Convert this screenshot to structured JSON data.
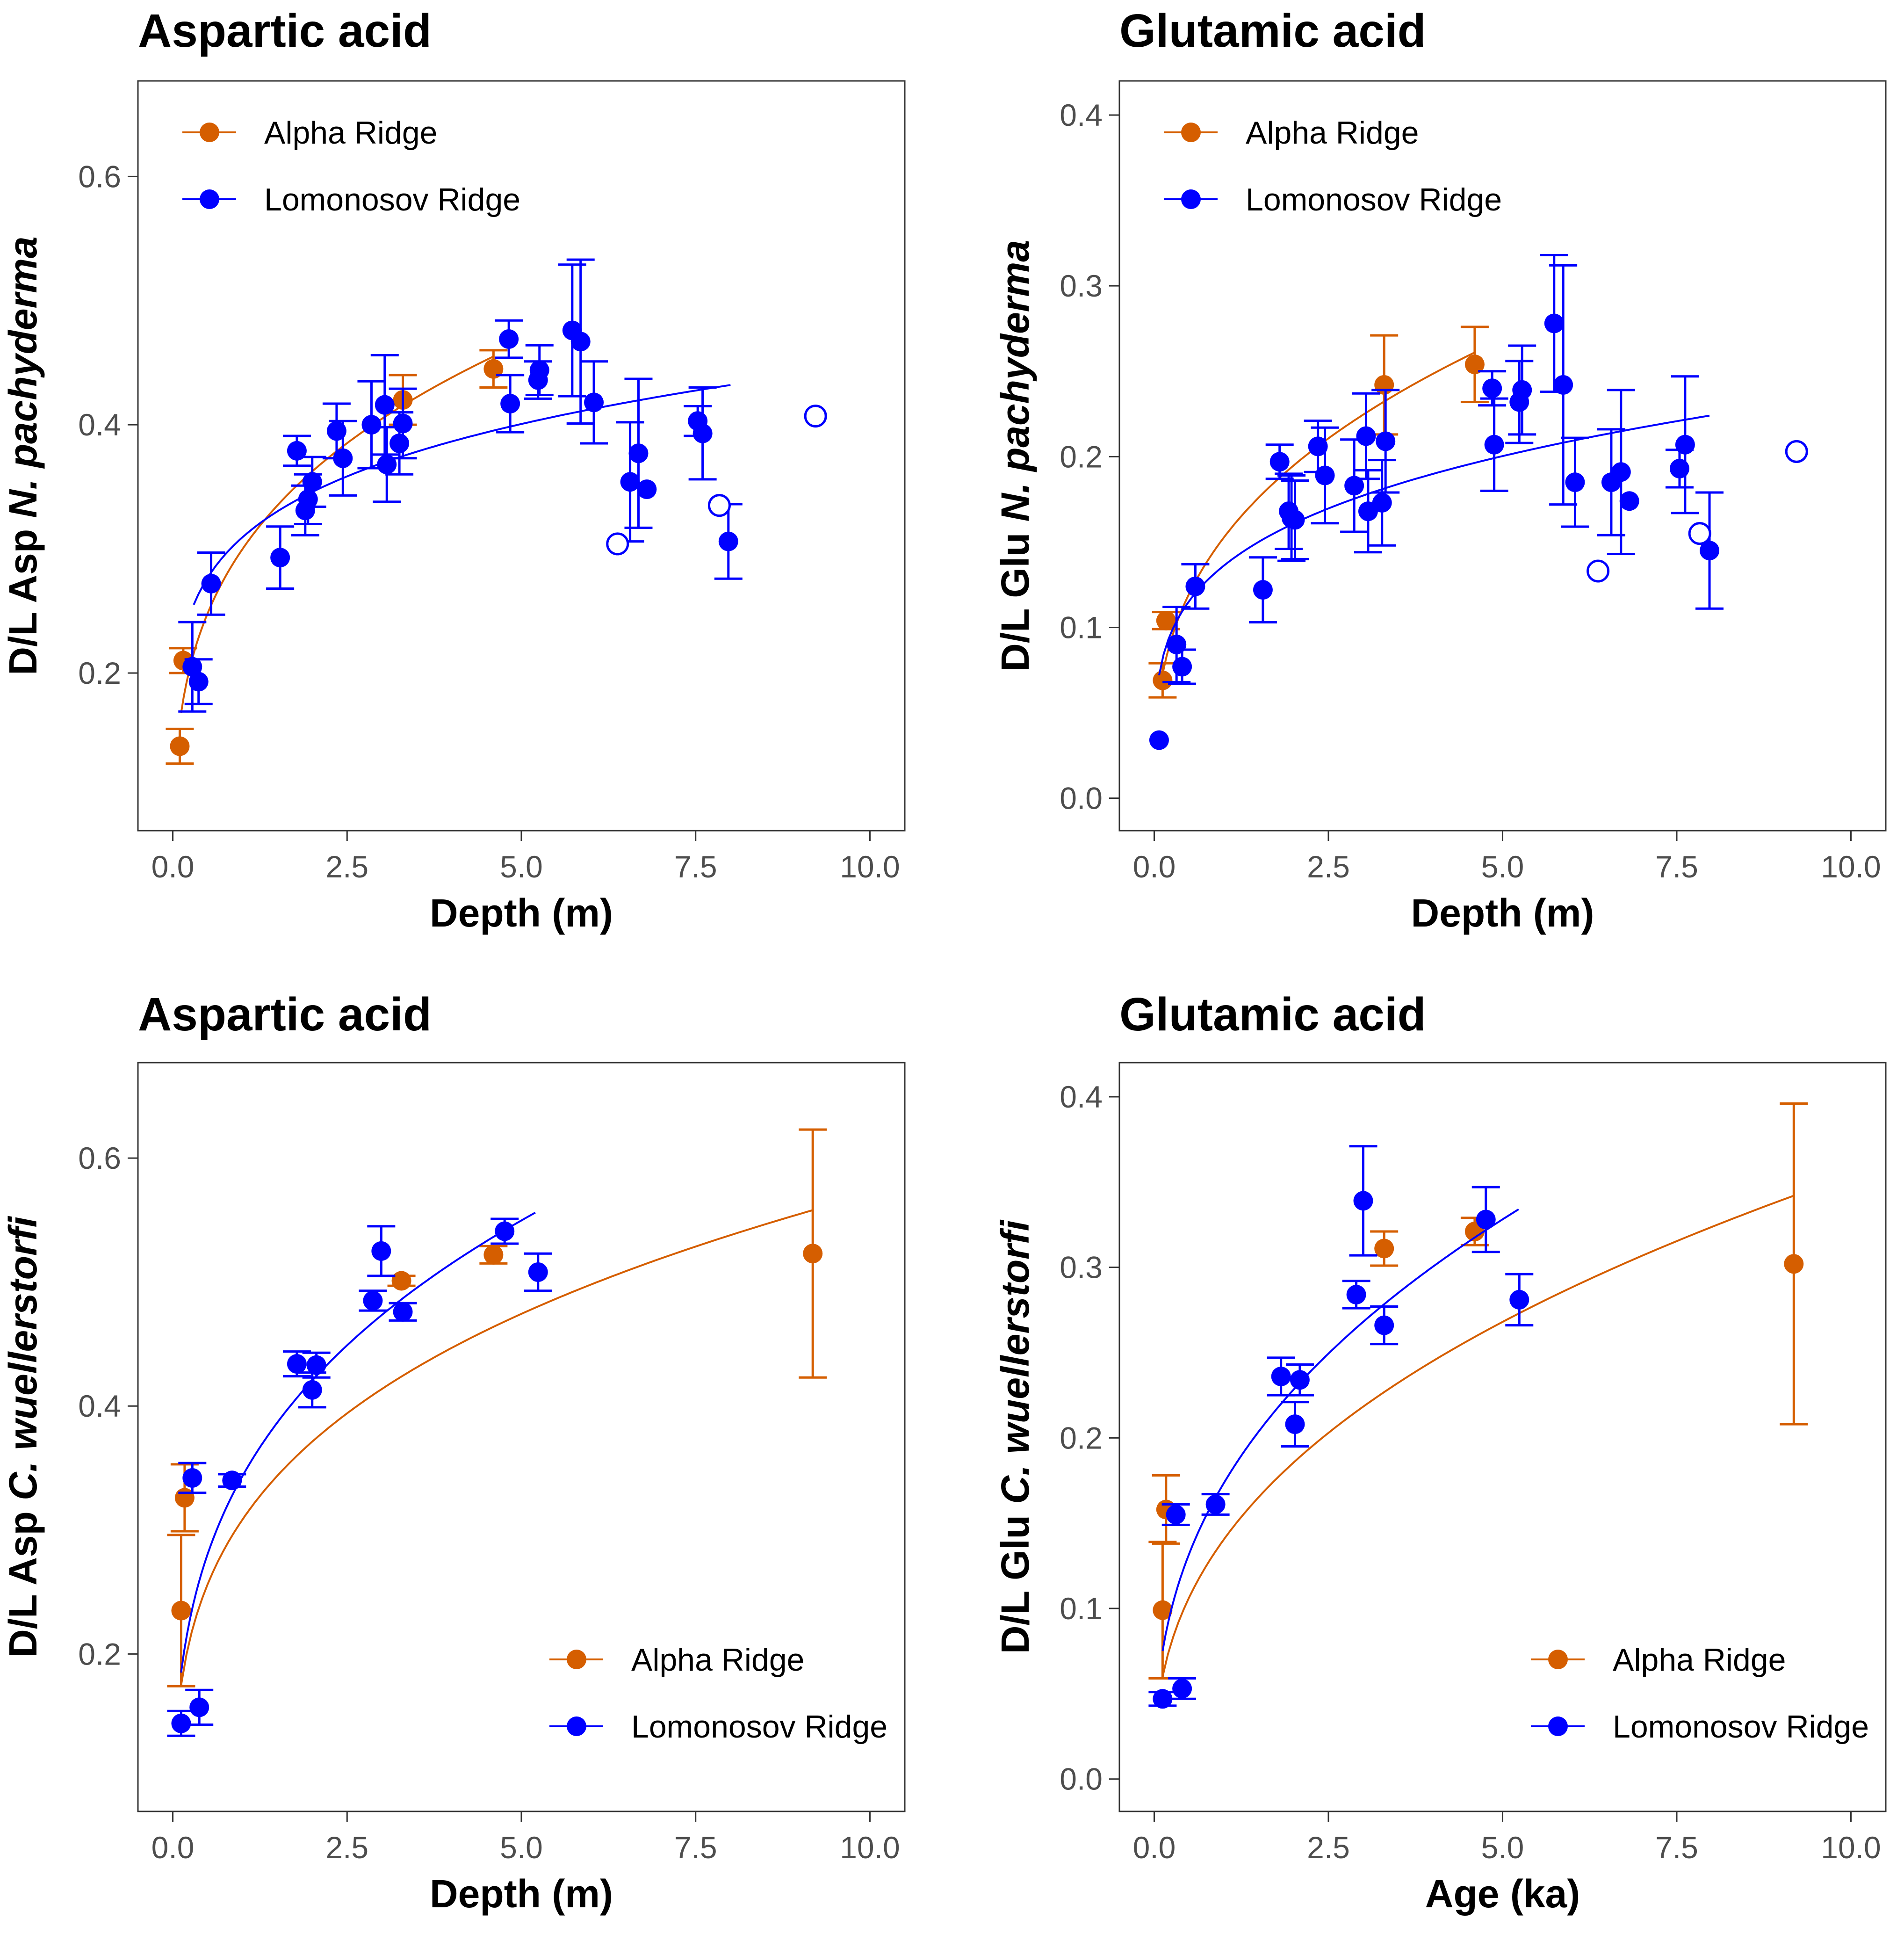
{
  "figure": {
    "colors": {
      "alpha": "#D55E00",
      "lomonosov": "#0000FF"
    }
  },
  "chart_data": [
    {
      "type": "scatter",
      "title": "Aspartic acid",
      "xlabel": "Depth (m)",
      "ylabel_prefix": "D/L Asp ",
      "ylabel_italic": "N. pachyderma",
      "xlim": [
        -0.5,
        10.5
      ],
      "ylim": [
        0.073,
        0.677
      ],
      "xticks": [
        0,
        2.5,
        5,
        7.5,
        10
      ],
      "xtick_labels": [
        "0.0",
        "2.5",
        "5.0",
        "7.5",
        "10.0"
      ],
      "yticks": [
        0.2,
        0.4,
        0.6
      ],
      "ytick_labels": [
        "0.2",
        "0.4",
        "0.6"
      ],
      "grid": false,
      "legend": {
        "position": "top-left",
        "entries": [
          "Alpha Ridge",
          "Lomonosov Ridge"
        ]
      },
      "series": [
        {
          "name": "Alpha Ridge",
          "color_key": "alpha",
          "points": [
            {
              "x": 0.1,
              "y": 0.141,
              "err": 0.014
            },
            {
              "x": 0.15,
              "y": 0.21,
              "err": 0.01
            },
            {
              "x": 3.3,
              "y": 0.42,
              "err": 0.02
            },
            {
              "x": 4.6,
              "y": 0.445,
              "err": 0.015
            }
          ],
          "fit": {
            "x0": 0.12,
            "x1": 4.6,
            "y0": 0.168,
            "y1": 0.455
          }
        },
        {
          "name": "Lomonosov Ridge",
          "color_key": "lomonosov",
          "points": [
            {
              "x": 0.28,
              "y": 0.205,
              "err": 0.036
            },
            {
              "x": 0.37,
              "y": 0.193,
              "err": 0.018
            },
            {
              "x": 0.55,
              "y": 0.272,
              "err": 0.025
            },
            {
              "x": 1.54,
              "y": 0.293,
              "err": 0.025
            },
            {
              "x": 1.78,
              "y": 0.379,
              "err": 0.012
            },
            {
              "x": 1.9,
              "y": 0.331,
              "err": 0.02
            },
            {
              "x": 1.94,
              "y": 0.34,
              "err": 0.02
            },
            {
              "x": 2.0,
              "y": 0.354,
              "err": 0.02
            },
            {
              "x": 2.35,
              "y": 0.395,
              "err": 0.022
            },
            {
              "x": 2.44,
              "y": 0.373,
              "err": 0.03
            },
            {
              "x": 2.85,
              "y": 0.4,
              "err": 0.035
            },
            {
              "x": 3.04,
              "y": 0.416,
              "err": 0.04
            },
            {
              "x": 3.07,
              "y": 0.368,
              "err": 0.03
            },
            {
              "x": 3.25,
              "y": 0.385,
              "err": 0.025
            },
            {
              "x": 3.3,
              "y": 0.401,
              "err": 0.028
            },
            {
              "x": 4.82,
              "y": 0.469,
              "err": 0.015
            },
            {
              "x": 4.84,
              "y": 0.417,
              "err": 0.023
            },
            {
              "x": 5.24,
              "y": 0.436,
              "err": 0.015
            },
            {
              "x": 5.26,
              "y": 0.444,
              "err": 0.02
            },
            {
              "x": 5.73,
              "y": 0.476,
              "err": 0.053
            },
            {
              "x": 5.85,
              "y": 0.467,
              "err": 0.066
            },
            {
              "x": 6.04,
              "y": 0.418,
              "err": 0.033
            },
            {
              "x": 6.56,
              "y": 0.354,
              "err": 0.048
            },
            {
              "x": 6.68,
              "y": 0.377,
              "err": 0.06
            },
            {
              "x": 6.8,
              "y": 0.348,
              "err": 0
            },
            {
              "x": 7.53,
              "y": 0.403,
              "err": 0.012
            },
            {
              "x": 7.6,
              "y": 0.393,
              "err": 0.037
            },
            {
              "x": 7.97,
              "y": 0.306,
              "err": 0.03
            }
          ],
          "excluded_points": [
            {
              "x": 6.38,
              "y": 0.304
            },
            {
              "x": 7.84,
              "y": 0.335
            },
            {
              "x": 9.22,
              "y": 0.407
            }
          ],
          "fit": {
            "x0": 0.3,
            "x1": 8.0,
            "y0": 0.255,
            "y1": 0.432
          }
        }
      ]
    },
    {
      "type": "scatter",
      "title": "Glutamic acid",
      "xlabel": "Depth (m)",
      "ylabel_prefix": "D/L Glu ",
      "ylabel_italic": "N. pachyderma",
      "xlim": [
        -0.5,
        10.5
      ],
      "ylim": [
        -0.019,
        0.42
      ],
      "xticks": [
        0,
        2.5,
        5,
        7.5,
        10
      ],
      "xtick_labels": [
        "0.0",
        "2.5",
        "5.0",
        "7.5",
        "10.0"
      ],
      "yticks": [
        0.0,
        0.1,
        0.2,
        0.3,
        0.4
      ],
      "ytick_labels": [
        "0.0",
        "0.1",
        "0.2",
        "0.3",
        "0.4"
      ],
      "grid": false,
      "legend": {
        "position": "top-left",
        "entries": [
          "Alpha Ridge",
          "Lomonosov Ridge"
        ]
      },
      "series": [
        {
          "name": "Alpha Ridge",
          "color_key": "alpha",
          "points": [
            {
              "x": 0.12,
              "y": 0.069,
              "err": 0.01
            },
            {
              "x": 0.17,
              "y": 0.104,
              "err": 0.005
            },
            {
              "x": 3.3,
              "y": 0.242,
              "err": 0.029
            },
            {
              "x": 4.6,
              "y": 0.254,
              "err": 0.022
            }
          ],
          "fit": {
            "x0": 0.1,
            "x1": 4.6,
            "y0": 0.068,
            "y1": 0.261
          }
        },
        {
          "name": "Lomonosov Ridge",
          "color_key": "lomonosov",
          "points": [
            {
              "x": 0.07,
              "y": 0.034,
              "err": 0
            },
            {
              "x": 0.32,
              "y": 0.09,
              "err": 0.022
            },
            {
              "x": 0.4,
              "y": 0.077,
              "err": 0.01
            },
            {
              "x": 0.59,
              "y": 0.124,
              "err": 0.013
            },
            {
              "x": 1.56,
              "y": 0.122,
              "err": 0.019
            },
            {
              "x": 1.8,
              "y": 0.197,
              "err": 0.01
            },
            {
              "x": 1.93,
              "y": 0.168,
              "err": 0.022
            },
            {
              "x": 1.97,
              "y": 0.164,
              "err": 0.025
            },
            {
              "x": 2.02,
              "y": 0.163,
              "err": 0.023
            },
            {
              "x": 2.35,
              "y": 0.206,
              "err": 0.015
            },
            {
              "x": 2.45,
              "y": 0.189,
              "err": 0.028
            },
            {
              "x": 2.87,
              "y": 0.183,
              "err": 0.027
            },
            {
              "x": 3.04,
              "y": 0.212,
              "err": 0.025
            },
            {
              "x": 3.07,
              "y": 0.168,
              "err": 0.024
            },
            {
              "x": 3.27,
              "y": 0.173,
              "err": 0.025
            },
            {
              "x": 3.32,
              "y": 0.209,
              "err": 0.03
            },
            {
              "x": 4.85,
              "y": 0.24,
              "err": 0.01
            },
            {
              "x": 4.88,
              "y": 0.207,
              "err": 0.027
            },
            {
              "x": 5.24,
              "y": 0.232,
              "err": 0.024
            },
            {
              "x": 5.28,
              "y": 0.239,
              "err": 0.026
            },
            {
              "x": 5.74,
              "y": 0.278,
              "err": 0.04
            },
            {
              "x": 5.87,
              "y": 0.242,
              "err": 0.07
            },
            {
              "x": 6.04,
              "y": 0.185,
              "err": 0.026
            },
            {
              "x": 6.56,
              "y": 0.185,
              "err": 0.031
            },
            {
              "x": 6.7,
              "y": 0.191,
              "err": 0.048
            },
            {
              "x": 6.82,
              "y": 0.174,
              "err": 0
            },
            {
              "x": 7.54,
              "y": 0.193,
              "err": 0.011
            },
            {
              "x": 7.62,
              "y": 0.207,
              "err": 0.04
            },
            {
              "x": 7.97,
              "y": 0.145,
              "err": 0.034
            }
          ],
          "excluded_points": [
            {
              "x": 6.37,
              "y": 0.133
            },
            {
              "x": 7.83,
              "y": 0.155
            },
            {
              "x": 9.22,
              "y": 0.203
            }
          ],
          "fit": {
            "x0": 0.07,
            "x1": 7.97,
            "y0": 0.072,
            "y1": 0.224
          }
        }
      ]
    },
    {
      "type": "scatter",
      "title": "Aspartic acid",
      "xlabel": "Depth (m)",
      "ylabel_prefix": "D/L Asp ",
      "ylabel_italic": "C. wuellerstorfi",
      "xlim": [
        -0.5,
        10.5
      ],
      "ylim": [
        0.073,
        0.677
      ],
      "xticks": [
        0,
        2.5,
        5,
        7.5,
        10
      ],
      "xtick_labels": [
        "0.0",
        "2.5",
        "5.0",
        "7.5",
        "10.0"
      ],
      "yticks": [
        0.2,
        0.4,
        0.6
      ],
      "ytick_labels": [
        "0.2",
        "0.4",
        "0.6"
      ],
      "grid": false,
      "legend": {
        "position": "bottom-right",
        "entries": [
          "Alpha Ridge",
          "Lomonosov Ridge"
        ]
      },
      "series": [
        {
          "name": "Alpha Ridge",
          "color_key": "alpha",
          "points": [
            {
              "x": 0.12,
              "y": 0.235,
              "err": 0.061
            },
            {
              "x": 0.17,
              "y": 0.326,
              "err": 0.027
            },
            {
              "x": 3.28,
              "y": 0.501,
              "err": 0.004
            },
            {
              "x": 4.6,
              "y": 0.522,
              "err": 0.007
            },
            {
              "x": 9.18,
              "y": 0.523,
              "err": 0.1
            }
          ],
          "fit": {
            "x0": 0.12,
            "x1": 9.18,
            "y0": 0.175,
            "y1": 0.558
          }
        },
        {
          "name": "Lomonosov Ridge",
          "color_key": "lomonosov",
          "points": [
            {
              "x": 0.12,
              "y": 0.144,
              "err": 0.01
            },
            {
              "x": 0.28,
              "y": 0.342,
              "err": 0.012
            },
            {
              "x": 0.38,
              "y": 0.157,
              "err": 0.014
            },
            {
              "x": 0.85,
              "y": 0.34,
              "err": 0.005
            },
            {
              "x": 1.78,
              "y": 0.434,
              "err": 0.01
            },
            {
              "x": 2.0,
              "y": 0.413,
              "err": 0.014
            },
            {
              "x": 2.06,
              "y": 0.433,
              "err": 0.01
            },
            {
              "x": 2.87,
              "y": 0.485,
              "err": 0.008
            },
            {
              "x": 2.99,
              "y": 0.525,
              "err": 0.02
            },
            {
              "x": 3.3,
              "y": 0.476,
              "err": 0.007
            },
            {
              "x": 4.76,
              "y": 0.541,
              "err": 0.01
            },
            {
              "x": 5.24,
              "y": 0.508,
              "err": 0.015
            }
          ],
          "fit": {
            "x0": 0.12,
            "x1": 5.2,
            "y0": 0.185,
            "y1": 0.556
          }
        }
      ]
    },
    {
      "type": "scatter",
      "title": "Glutamic acid",
      "xlabel": "Age (ka)",
      "ylabel_prefix": "D/L Glu ",
      "ylabel_italic": "C. wuellerstorfi",
      "xlim": [
        -0.5,
        10.5
      ],
      "ylim": [
        -0.019,
        0.42
      ],
      "xticks": [
        0,
        2.5,
        5,
        7.5,
        10
      ],
      "xtick_labels": [
        "0.0",
        "2.5",
        "5.0",
        "7.5",
        "10.0"
      ],
      "yticks": [
        0.0,
        0.1,
        0.2,
        0.3,
        0.4
      ],
      "ytick_labels": [
        "0.0",
        "0.1",
        "0.2",
        "0.3",
        "0.4"
      ],
      "grid": false,
      "legend": {
        "position": "bottom-right",
        "entries": [
          "Alpha Ridge",
          "Lomonosov Ridge"
        ]
      },
      "series": [
        {
          "name": "Alpha Ridge",
          "color_key": "alpha",
          "points": [
            {
              "x": 0.12,
              "y": 0.099,
              "err": 0.04
            },
            {
              "x": 0.17,
              "y": 0.158,
              "err": 0.02
            },
            {
              "x": 3.3,
              "y": 0.311,
              "err": 0.01
            },
            {
              "x": 4.6,
              "y": 0.321,
              "err": 0.008
            },
            {
              "x": 9.18,
              "y": 0.302,
              "err": 0.094
            }
          ],
          "fit": {
            "x0": 0.12,
            "x1": 9.18,
            "y0": 0.06,
            "y1": 0.342
          }
        },
        {
          "name": "Lomonosov Ridge",
          "color_key": "lomonosov",
          "points": [
            {
              "x": 0.12,
              "y": 0.047,
              "err": 0.004
            },
            {
              "x": 0.31,
              "y": 0.155,
              "err": 0.006
            },
            {
              "x": 0.4,
              "y": 0.053,
              "err": 0.006
            },
            {
              "x": 0.88,
              "y": 0.161,
              "err": 0.006
            },
            {
              "x": 1.82,
              "y": 0.236,
              "err": 0.011
            },
            {
              "x": 2.02,
              "y": 0.208,
              "err": 0.013
            },
            {
              "x": 2.09,
              "y": 0.234,
              "err": 0.009
            },
            {
              "x": 2.9,
              "y": 0.284,
              "err": 0.008
            },
            {
              "x": 3.0,
              "y": 0.339,
              "err": 0.032
            },
            {
              "x": 3.3,
              "y": 0.266,
              "err": 0.011
            },
            {
              "x": 4.76,
              "y": 0.328,
              "err": 0.019
            },
            {
              "x": 5.24,
              "y": 0.281,
              "err": 0.015
            }
          ],
          "fit": {
            "x0": 0.12,
            "x1": 5.23,
            "y0": 0.075,
            "y1": 0.334
          }
        }
      ]
    }
  ]
}
